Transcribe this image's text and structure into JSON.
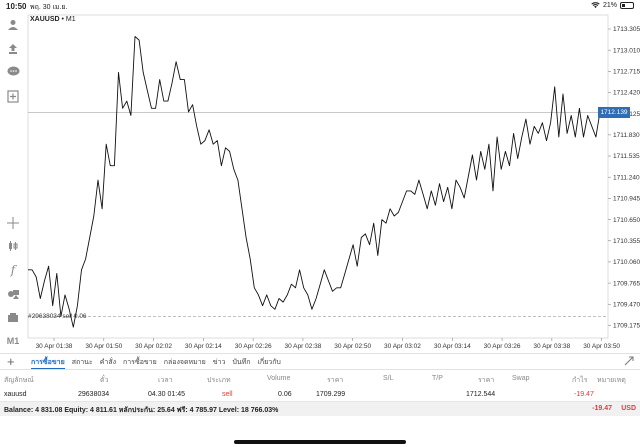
{
  "status_bar": {
    "time": "10:50",
    "date": "พฤ. 30 เม.ย.",
    "battery": "21%"
  },
  "chart": {
    "symbol": "XAUUSD",
    "timeframe": "M1",
    "current_price_label": "1712.139",
    "order_line_label": "#29638034 sell 0.06"
  },
  "chart_data": {
    "type": "line",
    "ylim": [
      1709.0,
      1713.5
    ],
    "yticks": [
      "1713.305",
      "1713.010",
      "1712.715",
      "1712.420",
      "1712.125",
      "1711.830",
      "1711.535",
      "1711.240",
      "1710.945",
      "1710.650",
      "1710.355",
      "1710.060",
      "1709.765",
      "1709.470",
      "1709.175"
    ],
    "xticks": [
      "30 Apr 01:38",
      "30 Apr 01:50",
      "30 Apr 02:02",
      "30 Apr 02:14",
      "30 Apr 02:26",
      "30 Apr 02:38",
      "30 Apr 02:50",
      "30 Apr 03:02",
      "30 Apr 03:14",
      "30 Apr 03:26",
      "30 Apr 03:38",
      "30 Apr 03:50"
    ],
    "current_price": 1712.139,
    "order_price": 1709.299,
    "values": [
      1709.95,
      1709.95,
      1709.85,
      1709.55,
      1709.8,
      1710.0,
      1709.45,
      1709.9,
      1709.3,
      1709.6,
      1709.4,
      1709.15,
      1709.45,
      1709.95,
      1710.1,
      1710.4,
      1710.7,
      1711.2,
      1710.8,
      1711.7,
      1711.4,
      1711.4,
      1712.7,
      1712.2,
      1712.3,
      1712.1,
      1713.2,
      1713.15,
      1712.7,
      1712.45,
      1712.2,
      1712.2,
      1712.6,
      1712.3,
      1712.3,
      1712.55,
      1712.85,
      1712.6,
      1712.6,
      1712.15,
      1712.25,
      1711.95,
      1711.7,
      1711.75,
      1711.9,
      1711.7,
      1711.75,
      1711.4,
      1711.65,
      1711.6,
      1711.35,
      1711.2,
      1710.8,
      1710.4,
      1710.1,
      1709.7,
      1709.6,
      1709.45,
      1709.6,
      1709.45,
      1709.4,
      1709.55,
      1709.5,
      1709.6,
      1709.75,
      1709.7,
      1709.95,
      1709.7,
      1709.6,
      1709.4,
      1709.55,
      1709.75,
      1709.95,
      1709.8,
      1709.65,
      1709.7,
      1709.7,
      1709.9,
      1710.1,
      1710.3,
      1710.0,
      1710.4,
      1710.45,
      1710.3,
      1710.6,
      1710.15,
      1710.65,
      1710.6,
      1710.8,
      1710.7,
      1710.75,
      1710.9,
      1711.05,
      1711.05,
      1711.0,
      1711.2,
      1711.0,
      1710.8,
      1711.05,
      1710.85,
      1711.15,
      1710.9,
      1711.1,
      1710.8,
      1711.2,
      1711.1,
      1710.95,
      1711.25,
      1711.55,
      1711.2,
      1711.6,
      1711.35,
      1711.7,
      1711.05,
      1711.8,
      1711.35,
      1711.6,
      1711.4,
      1711.85,
      1711.5,
      1711.8,
      1712.05,
      1711.7,
      1711.95,
      1711.85,
      1712.0,
      1711.75,
      1712.0,
      1712.5,
      1711.8,
      1712.4,
      1711.85,
      1712.1,
      1711.8,
      1712.2,
      1711.8,
      1712.1,
      1711.95,
      1711.8,
      1712.15
    ]
  },
  "tabs": {
    "plus": "+",
    "items": [
      "การซื้อขาย",
      "สถานะ",
      "คำสั่ง",
      "การซื้อขาย",
      "กล่องจดหมาย",
      "ข่าว",
      "บันทึก",
      "เกี่ยวกับ"
    ],
    "active_index": 0
  },
  "table": {
    "headers": {
      "symbol": "สัญลักษณ์",
      "ticket": "ตั๋ว",
      "time": "เวลา",
      "type": "ประเภท",
      "volume": "Volume",
      "price": "ราคา",
      "sl": "S/L",
      "tp": "T/P",
      "current_price": "ราคา",
      "swap": "Swap",
      "profit": "กำไร",
      "comment": "หมายเหตุ"
    },
    "row": {
      "symbol": "xauusd",
      "ticket": "29638034",
      "time": "04.30 01:45",
      "type": "sell",
      "volume": "0.06",
      "price": "1709.299",
      "current_price": "1712.544",
      "profit": "-19.47"
    }
  },
  "balance": {
    "text": "Balance: 4 831.08 Equity: 4 811.61 หลักประกัน: 25.64 ฟรี: 4 785.97 Level: 18 766.03%",
    "total": "-19.47",
    "currency": "USD"
  },
  "colors": {
    "accent": "#1f6cc1",
    "price_label_bg": "#2f6db5",
    "negative": "#d94040",
    "line": "#111111"
  }
}
